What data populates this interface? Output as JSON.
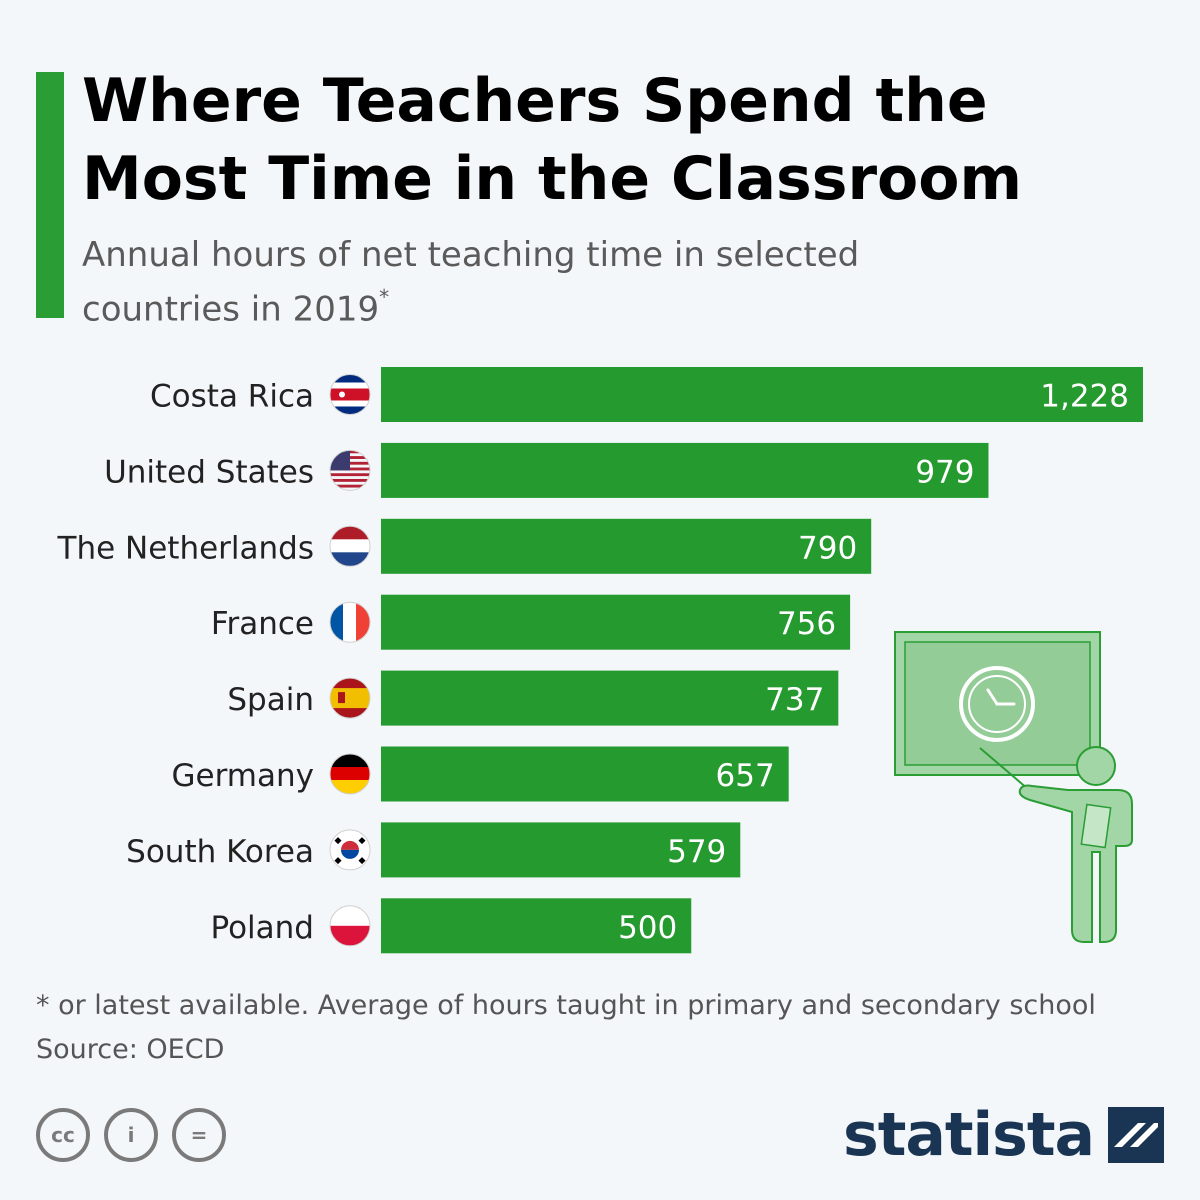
{
  "header": {
    "title": "Where Teachers Spend the Most Time in the Classroom",
    "subtitle": "Annual hours of net teaching time in selected countries in 2019",
    "subtitle_mark": "*"
  },
  "footer": {
    "footnote": "* or latest available. Average of hours taught in primary and secondary school",
    "source": "Source: OECD",
    "license_icons": [
      "cc-icon",
      "attribution-icon",
      "no-derivatives-icon"
    ],
    "license_labels": [
      "cc",
      "i",
      "="
    ],
    "brand": "statista"
  },
  "colors": {
    "bar": "#249a2f",
    "accent": "#2a9d35",
    "brand": "#1a3553"
  },
  "chart_data": {
    "type": "bar",
    "orientation": "horizontal",
    "categories": [
      "Costa Rica",
      "United States",
      "The Netherlands",
      "France",
      "Spain",
      "Germany",
      "South Korea",
      "Poland"
    ],
    "values": [
      1228,
      979,
      790,
      756,
      737,
      657,
      579,
      500
    ],
    "value_labels": [
      "1,228",
      "979",
      "790",
      "756",
      "737",
      "657",
      "579",
      "500"
    ],
    "flags": [
      "costa-rica-flag-icon",
      "united-states-flag-icon",
      "netherlands-flag-icon",
      "france-flag-icon",
      "spain-flag-icon",
      "germany-flag-icon",
      "south-korea-flag-icon",
      "poland-flag-icon"
    ],
    "xlim": [
      0,
      1228
    ],
    "grid": false,
    "legend": "none"
  },
  "illustration": "teacher-at-blackboard-with-clock-icon"
}
